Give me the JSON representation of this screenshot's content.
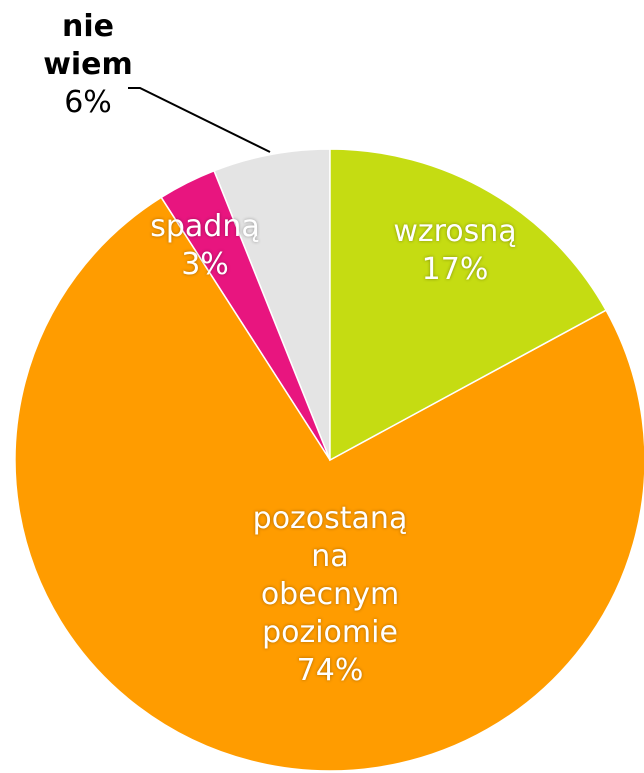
{
  "chart_data": {
    "type": "pie",
    "categories": [
      "wzrosną",
      "pozostaną na obecnym poziomie",
      "spadną",
      "nie wiem"
    ],
    "values": [
      17,
      74,
      3,
      6
    ],
    "value_labels": [
      "17%",
      "74%",
      "3%",
      "6%"
    ],
    "colors": [
      "#c5dc12",
      "#ff9c00",
      "#e8157f",
      "#e4e4e4"
    ]
  }
}
